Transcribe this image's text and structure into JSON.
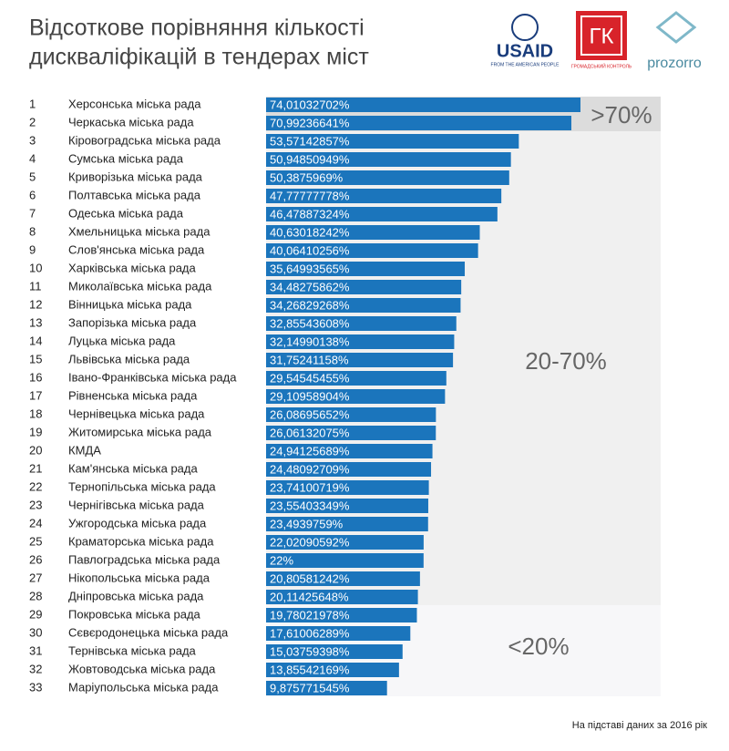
{
  "chart_data": {
    "type": "bar",
    "orientation": "horizontal",
    "title_lines": [
      "Відсоткове порівняння кількості",
      "дискваліфікацій  в тендерах міст"
    ],
    "ranks": [
      1,
      2,
      3,
      4,
      5,
      6,
      7,
      8,
      9,
      10,
      11,
      12,
      13,
      14,
      15,
      16,
      17,
      18,
      19,
      20,
      21,
      22,
      23,
      24,
      25,
      26,
      27,
      28,
      29,
      30,
      31,
      32,
      33
    ],
    "categories": [
      "Херсонська міська рада",
      "Черкаська міська рада",
      "Кіровоградська міська рада",
      "Сумська міська рада",
      "Криворізька міська рада",
      "Полтавська міська рада",
      "Одеська міська рада",
      "Хмельницька міська рада",
      "Слов'янська міська рада",
      "Харківська міська рада",
      "Миколаївська міська рада",
      "Вінницька міська рада",
      "Запорізька міська рада",
      "Луцька міська рада",
      "Львівська міська рада",
      "Івано-Франківська міська рада",
      "Рівненська міська рада",
      "Чернівецька міська рада",
      "Житомирська міська рада",
      "КМДА",
      "Кам'янська міська рада",
      "Тернопільська міська рада",
      "Чернігівська міська рада",
      "Ужгородська міська рада",
      "Краматорська міська рада",
      "Павлоградська міська рада",
      "Нікопольська міська рада",
      "Дніпровська міська рада",
      "Покровська міська рада",
      "Сєвєродонецька міська рада",
      "Тернівська міська рада",
      "Жовтоводська міська рада",
      "Маріупольська міська рада"
    ],
    "values": [
      74.01032702,
      70.99236641,
      53.57142857,
      50.94850949,
      50.3875969,
      47.77777778,
      46.47887324,
      40.63018242,
      40.06410256,
      35.64993565,
      34.48275862,
      34.26829268,
      32.85543608,
      32.14990138,
      31.75241158,
      29.54545455,
      29.10958904,
      26.08695652,
      26.06132075,
      24.94125689,
      24.48092709,
      23.74100719,
      23.55403349,
      23.4939759,
      22.02090592,
      22,
      20.80581242,
      20.11425648,
      19.78021978,
      17.61006289,
      15.03759398,
      13.85542169,
      9.875771545
    ],
    "value_labels": [
      "74,01032702%",
      "70,99236641%",
      "53,57142857%",
      "50,94850949%",
      "50,3875969%",
      "47,77777778%",
      "46,47887324%",
      "40,63018242%",
      "40,06410256%",
      "35,64993565%",
      "34,48275862%",
      "34,26829268%",
      "32,85543608%",
      "32,14990138%",
      "31,75241158%",
      "29,54545455%",
      "29,10958904%",
      "26,08695652%",
      "26,06132075%",
      "24,94125689%",
      "24,48092709%",
      "23,74100719%",
      "23,55403349%",
      "23,4939759%",
      "22,02090592%",
      "22%",
      "20,80581242%",
      "20,11425648%",
      "19,78021978%",
      "17,61006289%",
      "15,03759398%",
      "13,85542169%",
      "9,875771545%"
    ],
    "color": "#1b75bc",
    "annotations": [
      ">70%",
      "20-70%",
      "<20%"
    ],
    "logos": [
      "USAID",
      "FROM THE AMERICAN PEOPLE",
      "ГК",
      "ГРОМАДСЬКИЙ КОНТРОЛЬ",
      "prozorro"
    ],
    "source": "На підставі даних за 2016 рік"
  }
}
